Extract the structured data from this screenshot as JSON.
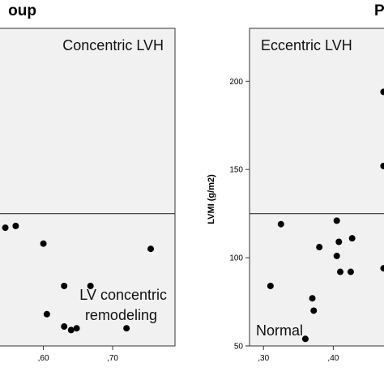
{
  "chart_data": [
    {
      "type": "scatter",
      "panel_title": "oup",
      "title": "",
      "xlabel": "",
      "ylabel": "",
      "xlim": [
        0.535,
        0.79
      ],
      "ylim": [
        50,
        230
      ],
      "x_ticks": [
        {
          "value": 0.6,
          "label": ",60"
        },
        {
          "value": 0.7,
          "label": ",70"
        }
      ],
      "y_ticks": [],
      "background": {
        "upper": "#f1f1f1",
        "lower": "#f1f1f1"
      },
      "divider_y": 125,
      "region_labels": {
        "top_right": "Concentric LVH",
        "bottom_right": "LV concentric remodeling"
      },
      "points": [
        {
          "x": 0.545,
          "y": 117
        },
        {
          "x": 0.56,
          "y": 118
        },
        {
          "x": 0.6,
          "y": 108
        },
        {
          "x": 0.605,
          "y": 68
        },
        {
          "x": 0.63,
          "y": 84
        },
        {
          "x": 0.63,
          "y": 61
        },
        {
          "x": 0.64,
          "y": 59
        },
        {
          "x": 0.648,
          "y": 60
        },
        {
          "x": 0.668,
          "y": 84
        },
        {
          "x": 0.72,
          "y": 60
        },
        {
          "x": 0.755,
          "y": 105
        }
      ]
    },
    {
      "type": "scatter",
      "panel_title": "P",
      "title": "",
      "xlabel": "",
      "ylabel": "LVMI (g/m2)",
      "xlim": [
        0.28,
        0.475
      ],
      "ylim": [
        50,
        230
      ],
      "x_ticks": [
        {
          "value": 0.3,
          "label": ",30"
        },
        {
          "value": 0.4,
          "label": ",40"
        }
      ],
      "y_ticks": [
        {
          "value": 50,
          "label": "50"
        },
        {
          "value": 100,
          "label": "100"
        },
        {
          "value": 150,
          "label": "150"
        },
        {
          "value": 200,
          "label": "200"
        }
      ],
      "background": {
        "upper": "#f1f1f1",
        "lower": "#f1f1f1"
      },
      "divider_y": 125,
      "region_labels": {
        "top_left": "Eccentric LVH",
        "bottom_left": "Normal"
      },
      "points": [
        {
          "x": 0.31,
          "y": 84
        },
        {
          "x": 0.325,
          "y": 119
        },
        {
          "x": 0.36,
          "y": 54
        },
        {
          "x": 0.37,
          "y": 77
        },
        {
          "x": 0.372,
          "y": 70
        },
        {
          "x": 0.38,
          "y": 106
        },
        {
          "x": 0.405,
          "y": 121
        },
        {
          "x": 0.405,
          "y": 101
        },
        {
          "x": 0.408,
          "y": 109
        },
        {
          "x": 0.41,
          "y": 92
        },
        {
          "x": 0.425,
          "y": 92
        },
        {
          "x": 0.427,
          "y": 111
        },
        {
          "x": 0.472,
          "y": 194
        },
        {
          "x": 0.472,
          "y": 152
        },
        {
          "x": 0.472,
          "y": 94
        }
      ]
    }
  ]
}
